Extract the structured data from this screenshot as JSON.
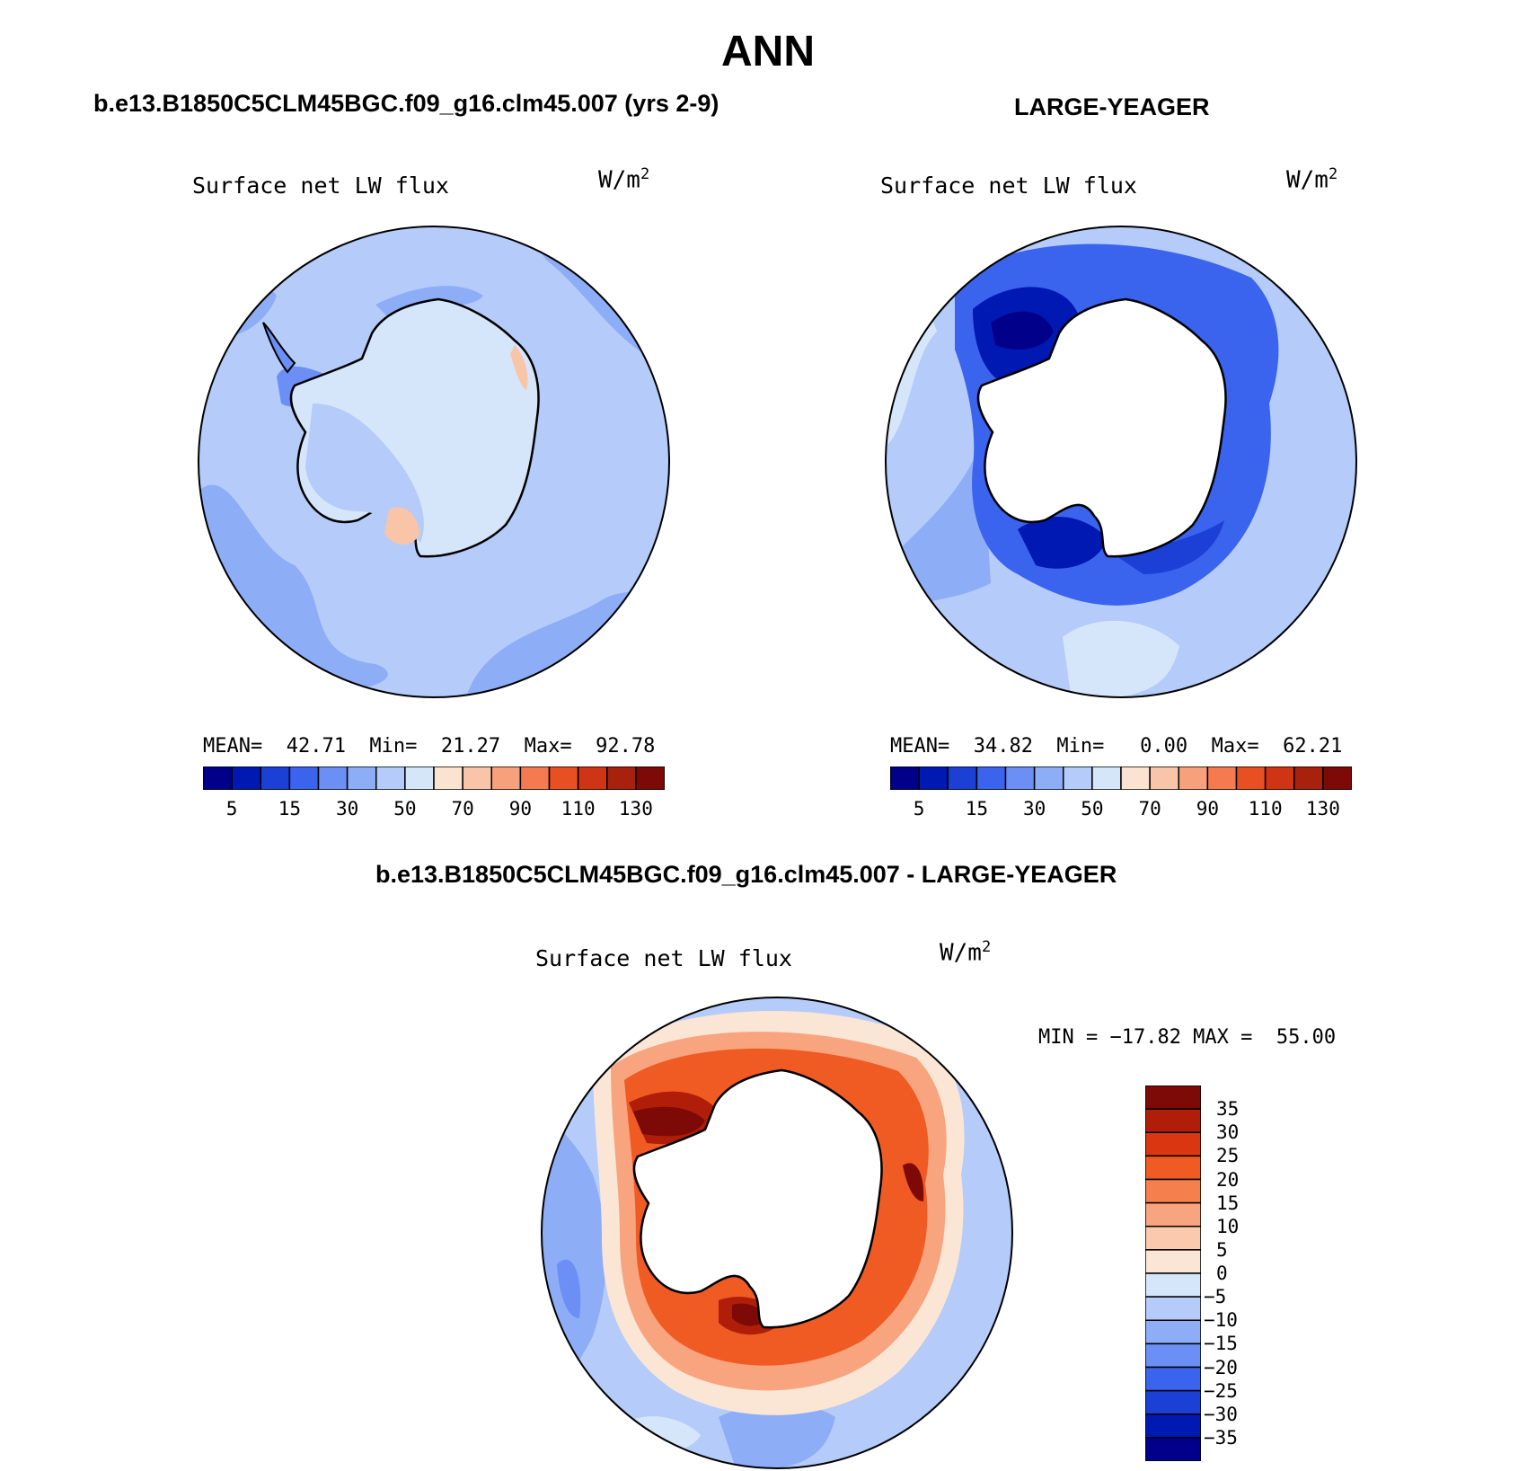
{
  "figure": {
    "title": "ANN"
  },
  "panel_left": {
    "subtitle": "b.e13.B1850C5CLM45BGC.f09_g16.clm45.007 (yrs 2-9)",
    "plot_label": "Surface net LW flux",
    "units_base": "W/m",
    "units_exp": "2",
    "stats": "MEAN=  42.71  Min=  21.27  Max=  92.78",
    "mean": 42.71,
    "min": 21.27,
    "max": 92.78
  },
  "panel_right": {
    "subtitle": "LARGE-YEAGER",
    "plot_label": "Surface net LW flux",
    "units_base": "W/m",
    "units_exp": "2",
    "stats": "MEAN=  34.82  Min=   0.00  Max=  62.21",
    "mean": 34.82,
    "min": 0.0,
    "max": 62.21
  },
  "panel_diff": {
    "subtitle": "b.e13.B1850C5CLM45BGC.f09_g16.clm45.007 - LARGE-YEAGER",
    "plot_label": "Surface net LW flux",
    "units_base": "W/m",
    "units_exp": "2",
    "stats": "MIN = −17.82 MAX =  55.00",
    "min": -17.82,
    "max": 55.0
  },
  "colorbar_abs": {
    "colors": [
      "#00008b",
      "#0019b3",
      "#1c3fd6",
      "#3a63ee",
      "#6b8ff5",
      "#8eadf7",
      "#b5cbf9",
      "#d6e6fa",
      "#fbe3d2",
      "#f9c5a8",
      "#f7a07c",
      "#f57a50",
      "#e84f23",
      "#cf3414",
      "#a8210c",
      "#7d0a06"
    ],
    "tick_labels": [
      "5",
      "15",
      "30",
      "50",
      "70",
      "90",
      "110",
      "130"
    ]
  },
  "colorbar_diff": {
    "colors": [
      "#7d0a06",
      "#b01e0a",
      "#d93611",
      "#f05a23",
      "#f5804e",
      "#f8a47e",
      "#fac9ae",
      "#fbe6d6",
      "#d6e6fa",
      "#b5cbf9",
      "#8eadf7",
      "#6b8ff5",
      "#3a63ee",
      "#1c3fd6",
      "#0019b3",
      "#00008b"
    ],
    "tick_labels": [
      "35",
      "30",
      "25",
      "20",
      "15",
      "10",
      "5",
      "0",
      "−5",
      "−10",
      "−15",
      "−20",
      "−25",
      "−30",
      "−35"
    ]
  }
}
